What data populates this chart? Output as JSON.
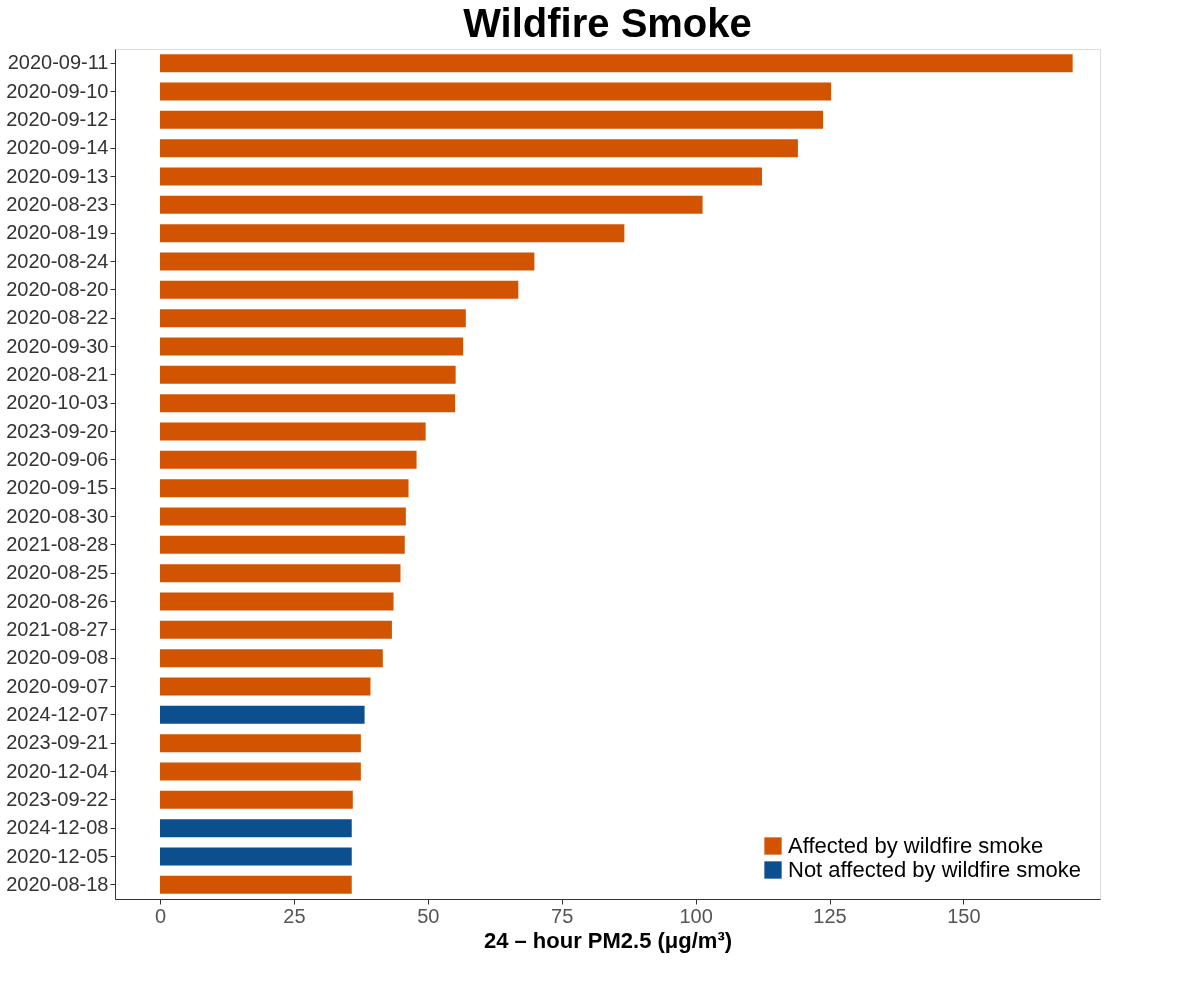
{
  "chart_data": {
    "type": "bar",
    "orientation": "horizontal",
    "title": "Wildfire Smoke",
    "xlabel": "24 – hour PM2.5 (μg/m³)",
    "categories": [
      "2020-09-11",
      "2020-09-10",
      "2020-09-12",
      "2020-09-14",
      "2020-09-13",
      "2020-08-23",
      "2020-08-19",
      "2020-08-24",
      "2020-08-20",
      "2020-08-22",
      "2020-09-30",
      "2020-08-21",
      "2020-10-03",
      "2023-09-20",
      "2020-09-06",
      "2020-09-15",
      "2020-08-30",
      "2021-08-28",
      "2020-08-25",
      "2020-08-26",
      "2021-08-27",
      "2020-09-08",
      "2020-09-07",
      "2024-12-07",
      "2023-09-21",
      "2020-12-04",
      "2023-09-22",
      "2024-12-08",
      "2020-12-05",
      "2020-08-18"
    ],
    "series": [
      {
        "name": "Affected by wildfire smoke",
        "color": "#d35400",
        "values": [
          170.4,
          125.3,
          123.8,
          119.1,
          112.4,
          101.3,
          86.7,
          69.9,
          66.9,
          57.1,
          56.6,
          55.2,
          55.1,
          49.6,
          47.9,
          46.4,
          45.9,
          45.7,
          44.9,
          43.6,
          43.3,
          41.6,
          39.3,
          null,
          37.5,
          37.5,
          36.0,
          null,
          null,
          35.8
        ]
      },
      {
        "name": "Not affected by wildfire smoke",
        "color": "#0b4f8f",
        "values": [
          null,
          null,
          null,
          null,
          null,
          null,
          null,
          null,
          null,
          null,
          null,
          null,
          null,
          null,
          null,
          null,
          null,
          null,
          null,
          null,
          null,
          null,
          null,
          38.2,
          null,
          null,
          null,
          35.8,
          35.8,
          null
        ]
      }
    ],
    "xlim": [
      -8.4,
      175.5
    ],
    "xticks": [
      0,
      25,
      50,
      75,
      100,
      125,
      150
    ],
    "grid": false,
    "legend": "bottom right"
  }
}
